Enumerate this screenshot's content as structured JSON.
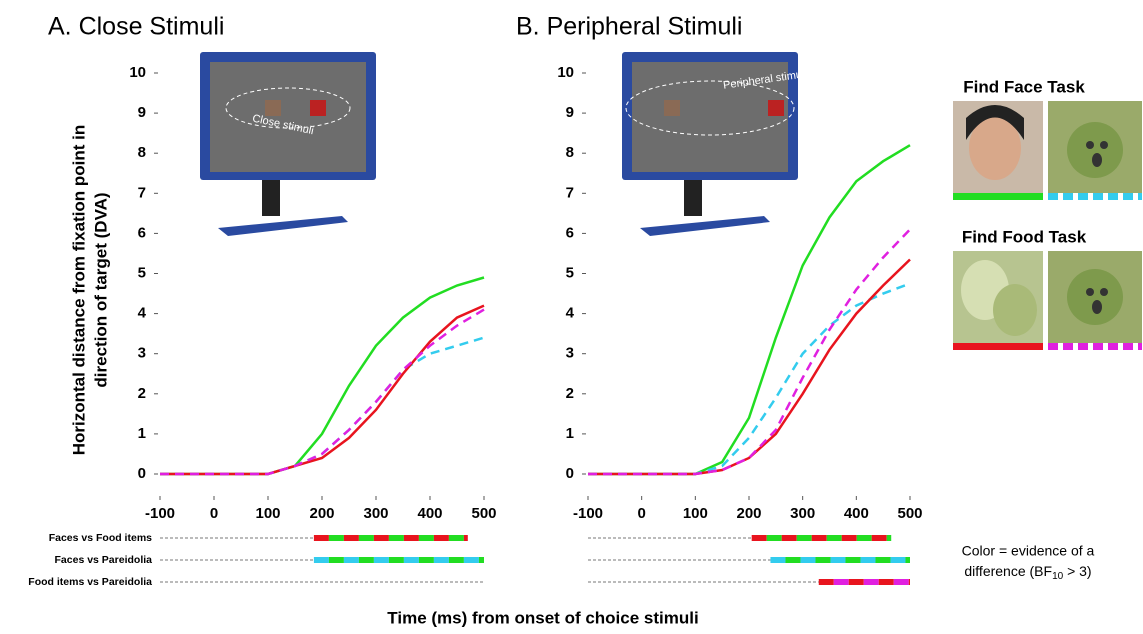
{
  "ylabel": [
    "Horizontal distance from fixation point in",
    "direction of target (DVA)"
  ],
  "xlabel": "Time (ms) from onset of choice stimuli",
  "comparisons": [
    "Faces vs Food items",
    "Faces vs Pareidolia",
    "Food items vs Pareidolia"
  ],
  "tasks": [
    "Find Face Task",
    "Find Food Task"
  ],
  "note": [
    "Color = evidence of a",
    "difference (BF",
    "10",
    " > 3)"
  ],
  "chart_data": [
    {
      "type": "line",
      "title": "A. Close Stimuli",
      "inset_label": "Close stimuli",
      "x": [
        -100,
        -50,
        0,
        50,
        100,
        150,
        200,
        250,
        300,
        350,
        400,
        450,
        500
      ],
      "xlim": [
        -100,
        500
      ],
      "xticks": [
        -100,
        0,
        100,
        200,
        300,
        400,
        500
      ],
      "ylim": [
        0,
        10
      ],
      "yticks": [
        0,
        1,
        2,
        3,
        4,
        5,
        6,
        7,
        8,
        9,
        10
      ],
      "series": [
        {
          "color": "#22dd22",
          "dash": false,
          "values": [
            0,
            0,
            0,
            0,
            0,
            0.2,
            1.0,
            2.2,
            3.2,
            3.9,
            4.4,
            4.7,
            4.9
          ]
        },
        {
          "color": "#33ccee",
          "dash": true,
          "values": [
            0,
            0,
            0,
            0,
            0,
            0.2,
            0.5,
            1.1,
            1.8,
            2.6,
            3.0,
            3.2,
            3.4
          ]
        },
        {
          "color": "#e8141e",
          "dash": false,
          "values": [
            0,
            0,
            0,
            0,
            0,
            0.2,
            0.4,
            0.9,
            1.6,
            2.5,
            3.3,
            3.9,
            4.2
          ]
        },
        {
          "color": "#e020e0",
          "dash": true,
          "values": [
            0,
            0,
            0,
            0,
            0,
            0.2,
            0.5,
            1.1,
            1.8,
            2.6,
            3.2,
            3.7,
            4.1
          ]
        }
      ],
      "significance": [
        {
          "start": 185,
          "end": 470,
          "colors": [
            "#e8141e",
            "#22dd22"
          ]
        },
        {
          "start": 185,
          "end": 500,
          "colors": [
            "#33ccee",
            "#22dd22"
          ]
        },
        {
          "start": null,
          "end": null,
          "colors": []
        }
      ]
    },
    {
      "type": "line",
      "title": "B. Peripheral Stimuli",
      "inset_label": "Peripheral stimuli",
      "x": [
        -100,
        -50,
        0,
        50,
        100,
        150,
        200,
        250,
        300,
        350,
        400,
        450,
        500
      ],
      "xlim": [
        -100,
        500
      ],
      "xticks": [
        -100,
        0,
        100,
        200,
        300,
        400,
        500
      ],
      "ylim": [
        0,
        10
      ],
      "yticks": [
        0,
        1,
        2,
        3,
        4,
        5,
        6,
        7,
        8,
        9,
        10
      ],
      "series": [
        {
          "color": "#22dd22",
          "dash": false,
          "values": [
            0,
            0,
            0,
            0,
            0,
            0.3,
            1.4,
            3.4,
            5.2,
            6.4,
            7.3,
            7.8,
            8.2
          ]
        },
        {
          "color": "#33ccee",
          "dash": true,
          "values": [
            0,
            0,
            0,
            0,
            0,
            0.2,
            0.9,
            1.9,
            3.0,
            3.7,
            4.2,
            4.5,
            4.75
          ]
        },
        {
          "color": "#e8141e",
          "dash": false,
          "values": [
            0,
            0,
            0,
            0,
            0,
            0.1,
            0.4,
            1.0,
            2.0,
            3.1,
            4.0,
            4.7,
            5.35
          ]
        },
        {
          "color": "#e020e0",
          "dash": true,
          "values": [
            0,
            0,
            0,
            0,
            0,
            0.1,
            0.4,
            1.1,
            2.4,
            3.6,
            4.6,
            5.4,
            6.1
          ]
        }
      ],
      "significance": [
        {
          "start": 205,
          "end": 465,
          "colors": [
            "#e8141e",
            "#22dd22"
          ]
        },
        {
          "start": 240,
          "end": 500,
          "colors": [
            "#33ccee",
            "#22dd22"
          ]
        },
        {
          "start": 330,
          "end": 500,
          "colors": [
            "#e8141e",
            "#e020e0"
          ]
        }
      ]
    }
  ]
}
